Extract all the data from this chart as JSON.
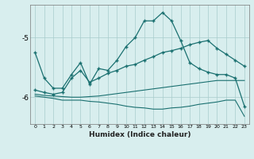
{
  "xlabel": "Humidex (Indice chaleur)",
  "xlim": [
    -0.5,
    23.5
  ],
  "ylim": [
    -6.45,
    -4.45
  ],
  "yticks": [
    -6,
    -5
  ],
  "bg_color": "#d8eeee",
  "grid_color": "#a8cccc",
  "line_color": "#1a7070",
  "x": [
    0,
    1,
    2,
    3,
    4,
    5,
    6,
    7,
    8,
    9,
    10,
    11,
    12,
    13,
    14,
    15,
    16,
    17,
    18,
    19,
    20,
    21,
    22,
    23
  ],
  "line1": [
    -5.25,
    -5.68,
    -5.85,
    -5.85,
    -5.62,
    -5.42,
    -5.78,
    -5.52,
    -5.55,
    -5.38,
    -5.15,
    -5.0,
    -4.72,
    -4.72,
    -4.58,
    -4.72,
    -5.05,
    -5.42,
    -5.52,
    -5.58,
    -5.62,
    -5.62,
    -5.68,
    -6.15
  ],
  "line2": [
    -5.88,
    -5.92,
    -5.95,
    -5.92,
    -5.68,
    -5.55,
    -5.75,
    -5.68,
    -5.6,
    -5.55,
    -5.48,
    -5.45,
    -5.38,
    -5.32,
    -5.25,
    -5.22,
    -5.18,
    -5.12,
    -5.08,
    -5.05,
    -5.18,
    -5.28,
    -5.38,
    -5.48
  ],
  "line3": [
    -5.95,
    -5.97,
    -5.98,
    -5.99,
    -6.0,
    -6.0,
    -5.99,
    -5.98,
    -5.96,
    -5.94,
    -5.92,
    -5.9,
    -5.88,
    -5.86,
    -5.84,
    -5.82,
    -5.8,
    -5.78,
    -5.76,
    -5.74,
    -5.72,
    -5.72,
    -5.72,
    -5.72
  ],
  "line4": [
    -5.98,
    -6.0,
    -6.02,
    -6.05,
    -6.05,
    -6.05,
    -6.07,
    -6.08,
    -6.1,
    -6.12,
    -6.15,
    -6.17,
    -6.18,
    -6.2,
    -6.2,
    -6.18,
    -6.17,
    -6.15,
    -6.12,
    -6.1,
    -6.08,
    -6.05,
    -6.05,
    -6.32
  ]
}
